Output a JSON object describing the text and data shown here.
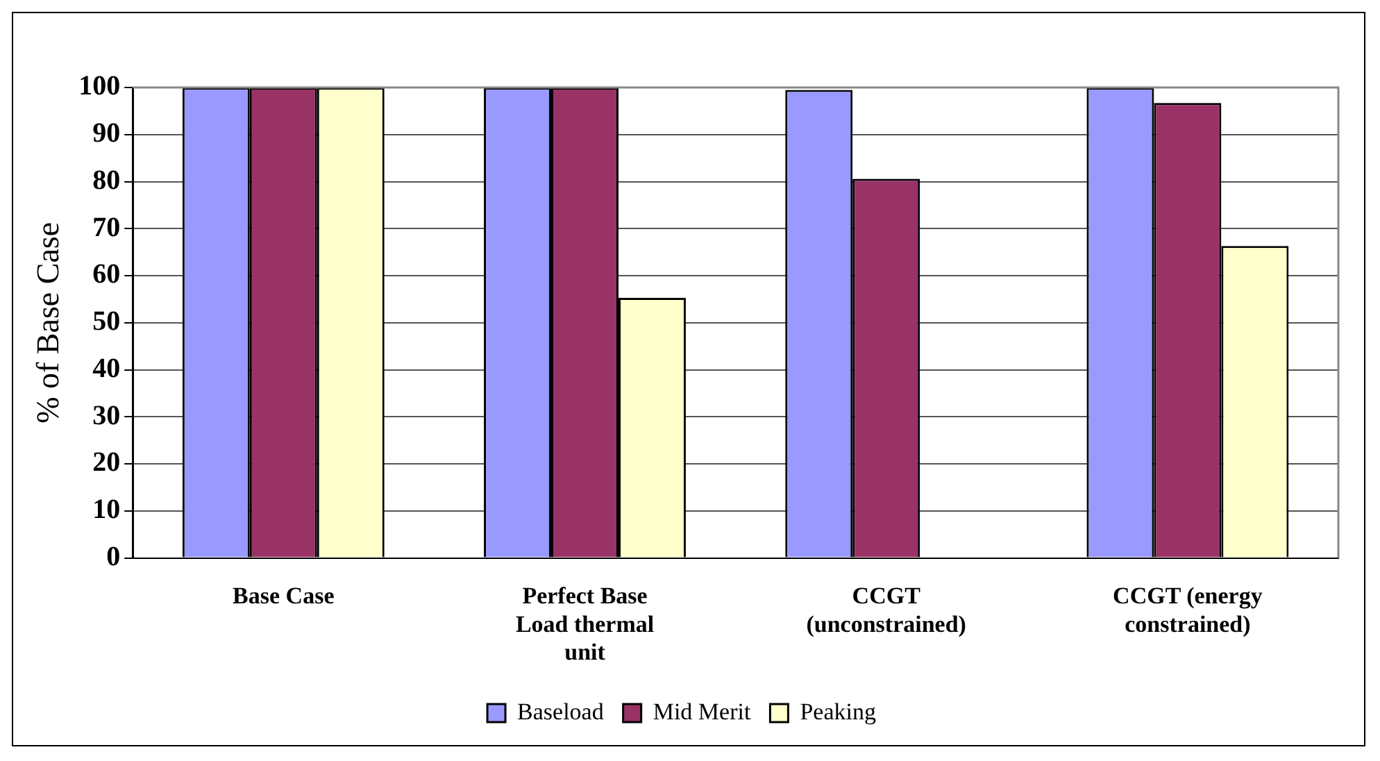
{
  "chart_data": {
    "type": "bar",
    "ylabel": "% of Base Case",
    "categories": [
      "Base Case",
      "Perfect Base Load thermal unit",
      "CCGT (unconstrained)",
      "CCGT (energy constrained)"
    ],
    "series": [
      {
        "name": "Baseload",
        "color": "#9999ff",
        "values": [
          100,
          100,
          99.5,
          100
        ]
      },
      {
        "name": "Mid Merit",
        "color": "#993366",
        "values": [
          100,
          100,
          80.6,
          96.7
        ]
      },
      {
        "name": "Peaking",
        "color": "#ffffcc",
        "values": [
          100,
          55.3,
          0,
          66.3
        ]
      }
    ],
    "ylim": [
      0,
      100
    ],
    "yticks": [
      0,
      10,
      20,
      30,
      40,
      50,
      60,
      70,
      80,
      90,
      100
    ],
    "grid": "y",
    "legend": "bottom"
  }
}
